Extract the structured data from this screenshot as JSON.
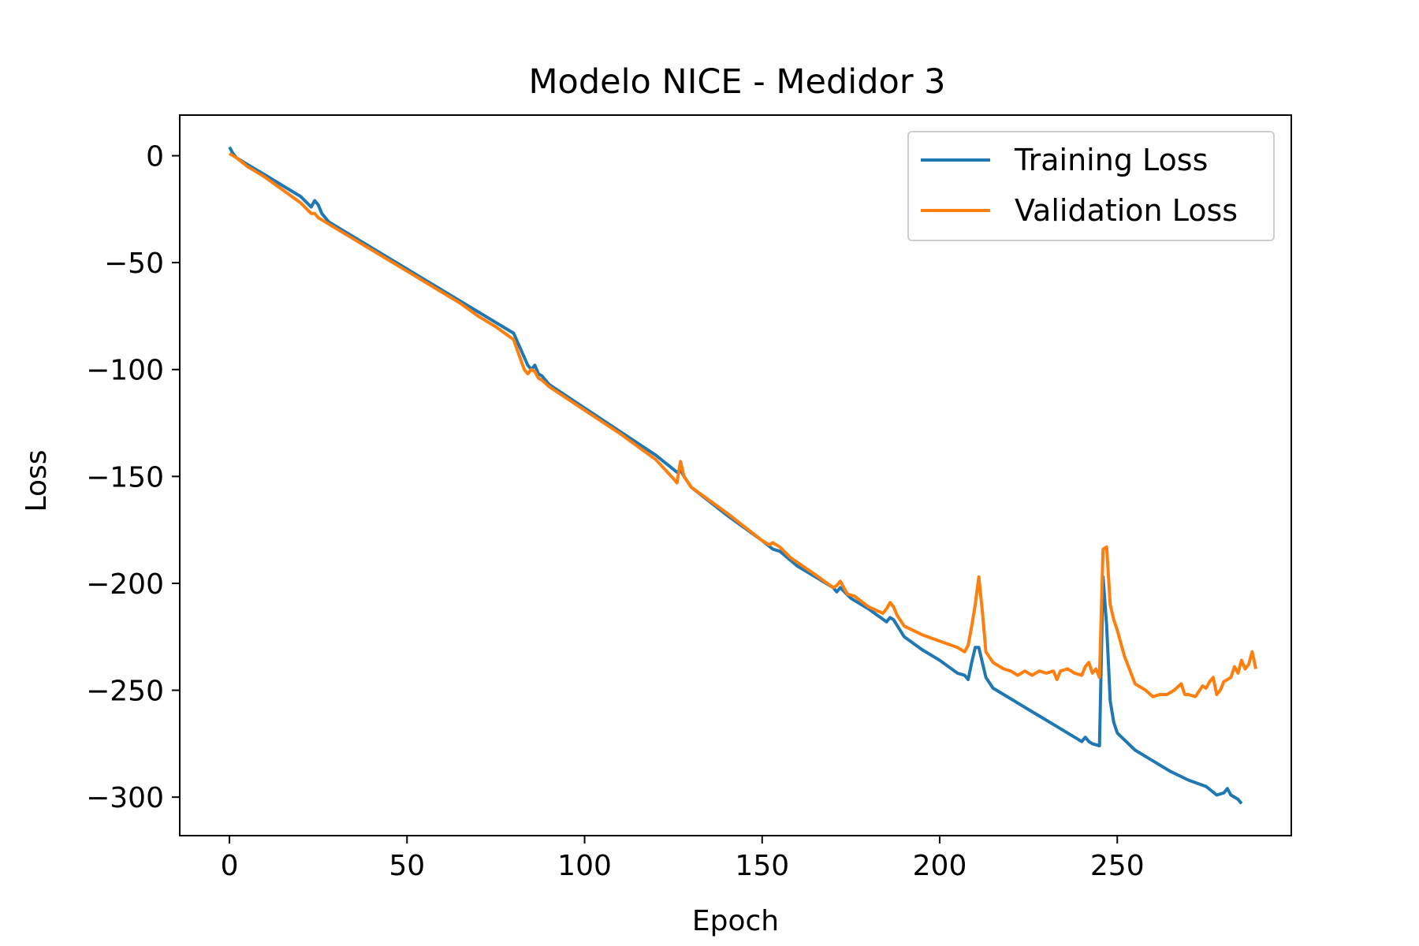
{
  "chart_data": {
    "type": "line",
    "title": "Modelo NICE - Medidor 3",
    "xlabel": "Epoch",
    "ylabel": "Loss",
    "xlim": [
      -14,
      299
    ],
    "ylim": [
      -318,
      19
    ],
    "xticks": [
      0,
      50,
      100,
      150,
      200,
      250
    ],
    "yticks": [
      0,
      -50,
      -100,
      -150,
      -200,
      -250,
      -300
    ],
    "xtick_labels": [
      "0",
      "50",
      "100",
      "150",
      "200",
      "250"
    ],
    "ytick_labels": [
      "0",
      "−50",
      "−100",
      "−150",
      "−200",
      "−250",
      "−300"
    ],
    "legend_position": "top-right",
    "grid": false,
    "series": [
      {
        "name": "Training Loss",
        "color": "#1f77b4",
        "points": [
          [
            0,
            4
          ],
          [
            1,
            1
          ],
          [
            2,
            -1
          ],
          [
            5,
            -4
          ],
          [
            10,
            -9
          ],
          [
            15,
            -14
          ],
          [
            20,
            -19
          ],
          [
            23,
            -24
          ],
          [
            24,
            -21
          ],
          [
            25,
            -23
          ],
          [
            26,
            -27
          ],
          [
            28,
            -31
          ],
          [
            35,
            -38
          ],
          [
            45,
            -48
          ],
          [
            55,
            -58
          ],
          [
            65,
            -68
          ],
          [
            70,
            -73
          ],
          [
            75,
            -78
          ],
          [
            80,
            -83
          ],
          [
            84,
            -98
          ],
          [
            85,
            -100
          ],
          [
            86,
            -98
          ],
          [
            87,
            -102
          ],
          [
            88,
            -103
          ],
          [
            90,
            -107
          ],
          [
            100,
            -118
          ],
          [
            110,
            -129
          ],
          [
            120,
            -140
          ],
          [
            126,
            -148
          ],
          [
            127,
            -147
          ],
          [
            128,
            -150
          ],
          [
            130,
            -155
          ],
          [
            140,
            -168
          ],
          [
            150,
            -180
          ],
          [
            153,
            -184
          ],
          [
            155,
            -185
          ],
          [
            160,
            -192
          ],
          [
            165,
            -197
          ],
          [
            170,
            -202
          ],
          [
            171,
            -204
          ],
          [
            172,
            -202
          ],
          [
            175,
            -207
          ],
          [
            180,
            -212
          ],
          [
            185,
            -218
          ],
          [
            186,
            -216
          ],
          [
            187,
            -217
          ],
          [
            190,
            -225
          ],
          [
            195,
            -231
          ],
          [
            200,
            -236
          ],
          [
            205,
            -242
          ],
          [
            207,
            -243
          ],
          [
            208,
            -245
          ],
          [
            209,
            -237
          ],
          [
            210,
            -230
          ],
          [
            211,
            -230
          ],
          [
            212,
            -237
          ],
          [
            213,
            -244
          ],
          [
            215,
            -249
          ],
          [
            220,
            -254
          ],
          [
            225,
            -259
          ],
          [
            230,
            -264
          ],
          [
            235,
            -269
          ],
          [
            238,
            -272
          ],
          [
            240,
            -274
          ],
          [
            241,
            -272
          ],
          [
            242,
            -274
          ],
          [
            243,
            -275
          ],
          [
            245,
            -276
          ],
          [
            246,
            -197
          ],
          [
            247,
            -220
          ],
          [
            248,
            -255
          ],
          [
            249,
            -265
          ],
          [
            250,
            -270
          ],
          [
            255,
            -278
          ],
          [
            260,
            -283
          ],
          [
            265,
            -288
          ],
          [
            270,
            -292
          ],
          [
            275,
            -295
          ],
          [
            278,
            -299
          ],
          [
            280,
            -298
          ],
          [
            281,
            -296
          ],
          [
            282,
            -299
          ],
          [
            284,
            -301
          ],
          [
            285,
            -303
          ]
        ]
      },
      {
        "name": "Validation Loss",
        "color": "#ff7f0e",
        "points": [
          [
            0,
            1
          ],
          [
            2,
            -1
          ],
          [
            5,
            -5
          ],
          [
            10,
            -10
          ],
          [
            15,
            -16
          ],
          [
            20,
            -22
          ],
          [
            23,
            -27
          ],
          [
            24,
            -27
          ],
          [
            25,
            -29
          ],
          [
            28,
            -32
          ],
          [
            35,
            -39
          ],
          [
            45,
            -49
          ],
          [
            55,
            -59
          ],
          [
            65,
            -69
          ],
          [
            70,
            -75
          ],
          [
            75,
            -80
          ],
          [
            80,
            -86
          ],
          [
            83,
            -100
          ],
          [
            84,
            -102
          ],
          [
            85,
            -100
          ],
          [
            86,
            -101
          ],
          [
            87,
            -104
          ],
          [
            88,
            -105
          ],
          [
            90,
            -108
          ],
          [
            100,
            -119
          ],
          [
            110,
            -130
          ],
          [
            120,
            -142
          ],
          [
            125,
            -151
          ],
          [
            126,
            -153
          ],
          [
            127,
            -143
          ],
          [
            128,
            -150
          ],
          [
            130,
            -155
          ],
          [
            140,
            -167
          ],
          [
            150,
            -180
          ],
          [
            152,
            -182
          ],
          [
            153,
            -181
          ],
          [
            155,
            -183
          ],
          [
            158,
            -188
          ],
          [
            165,
            -196
          ],
          [
            170,
            -202
          ],
          [
            171,
            -201
          ],
          [
            172,
            -199
          ],
          [
            174,
            -205
          ],
          [
            176,
            -206
          ],
          [
            180,
            -211
          ],
          [
            184,
            -214
          ],
          [
            185,
            -212
          ],
          [
            186,
            -209
          ],
          [
            187,
            -211
          ],
          [
            188,
            -215
          ],
          [
            190,
            -220
          ],
          [
            195,
            -224
          ],
          [
            200,
            -227
          ],
          [
            205,
            -230
          ],
          [
            207,
            -232
          ],
          [
            208,
            -229
          ],
          [
            209,
            -220
          ],
          [
            210,
            -210
          ],
          [
            211,
            -197
          ],
          [
            212,
            -213
          ],
          [
            213,
            -232
          ],
          [
            215,
            -237
          ],
          [
            218,
            -240
          ],
          [
            220,
            -241
          ],
          [
            222,
            -243
          ],
          [
            224,
            -241
          ],
          [
            226,
            -243
          ],
          [
            228,
            -241
          ],
          [
            230,
            -242
          ],
          [
            232,
            -241
          ],
          [
            233,
            -245
          ],
          [
            234,
            -241
          ],
          [
            236,
            -240
          ],
          [
            238,
            -242
          ],
          [
            240,
            -243
          ],
          [
            241,
            -239
          ],
          [
            242,
            -237
          ],
          [
            243,
            -242
          ],
          [
            244,
            -240
          ],
          [
            245,
            -244
          ],
          [
            246,
            -184
          ],
          [
            247,
            -183
          ],
          [
            248,
            -210
          ],
          [
            249,
            -217
          ],
          [
            250,
            -222
          ],
          [
            252,
            -234
          ],
          [
            255,
            -247
          ],
          [
            258,
            -250
          ],
          [
            260,
            -253
          ],
          [
            262,
            -252
          ],
          [
            264,
            -252
          ],
          [
            266,
            -250
          ],
          [
            268,
            -247
          ],
          [
            269,
            -252
          ],
          [
            270,
            -252
          ],
          [
            272,
            -253
          ],
          [
            274,
            -248
          ],
          [
            275,
            -249
          ],
          [
            276,
            -246
          ],
          [
            277,
            -244
          ],
          [
            278,
            -252
          ],
          [
            279,
            -250
          ],
          [
            280,
            -246
          ],
          [
            282,
            -244
          ],
          [
            283,
            -239
          ],
          [
            284,
            -242
          ],
          [
            285,
            -236
          ],
          [
            286,
            -240
          ],
          [
            287,
            -238
          ],
          [
            288,
            -232
          ],
          [
            289,
            -240
          ]
        ]
      }
    ]
  }
}
